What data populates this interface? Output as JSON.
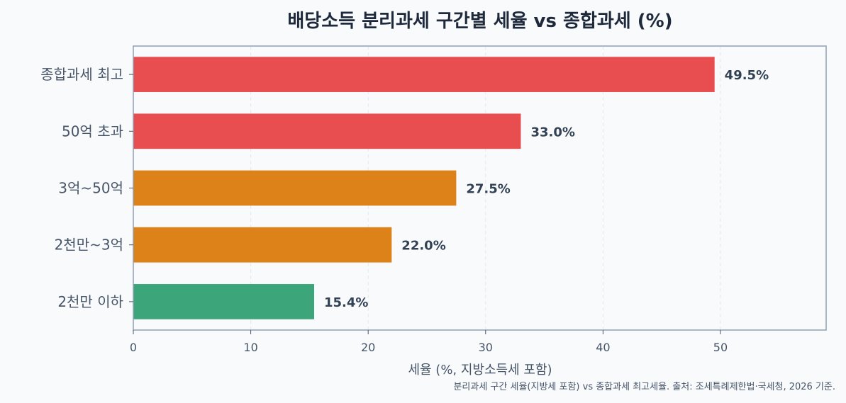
{
  "chart_data": {
    "type": "bar",
    "orientation": "horizontal",
    "title": "배당소득 분리과세 구간별 세율 vs 종합과세 (%)",
    "xlabel": "세율 (%, 지방소득세 포함)",
    "ylabel": "",
    "categories": [
      "종합과세 최고",
      "50억 초과",
      "3억~50억",
      "2천만~3억",
      "2천만 이하"
    ],
    "values": [
      49.5,
      33.0,
      27.5,
      22.0,
      15.4
    ],
    "value_labels": [
      "49.5%",
      "33.0%",
      "27.5%",
      "22.0%",
      "15.4%"
    ],
    "bar_colors": [
      "#e84d4f",
      "#e84d4f",
      "#dc8219",
      "#dc8219",
      "#3ca67a"
    ],
    "xlim": [
      0,
      59
    ],
    "xticks": [
      0,
      10,
      20,
      30,
      40,
      50
    ],
    "xtick_labels": [
      "0",
      "10",
      "20",
      "30",
      "40",
      "50"
    ],
    "grid": "vertical-dashed",
    "footnote": "분리과세 구간 세율(지방세 포함) vs 종합과세 최고세율. 출처: 조세특례제한법·국세청, 2026 기준."
  }
}
